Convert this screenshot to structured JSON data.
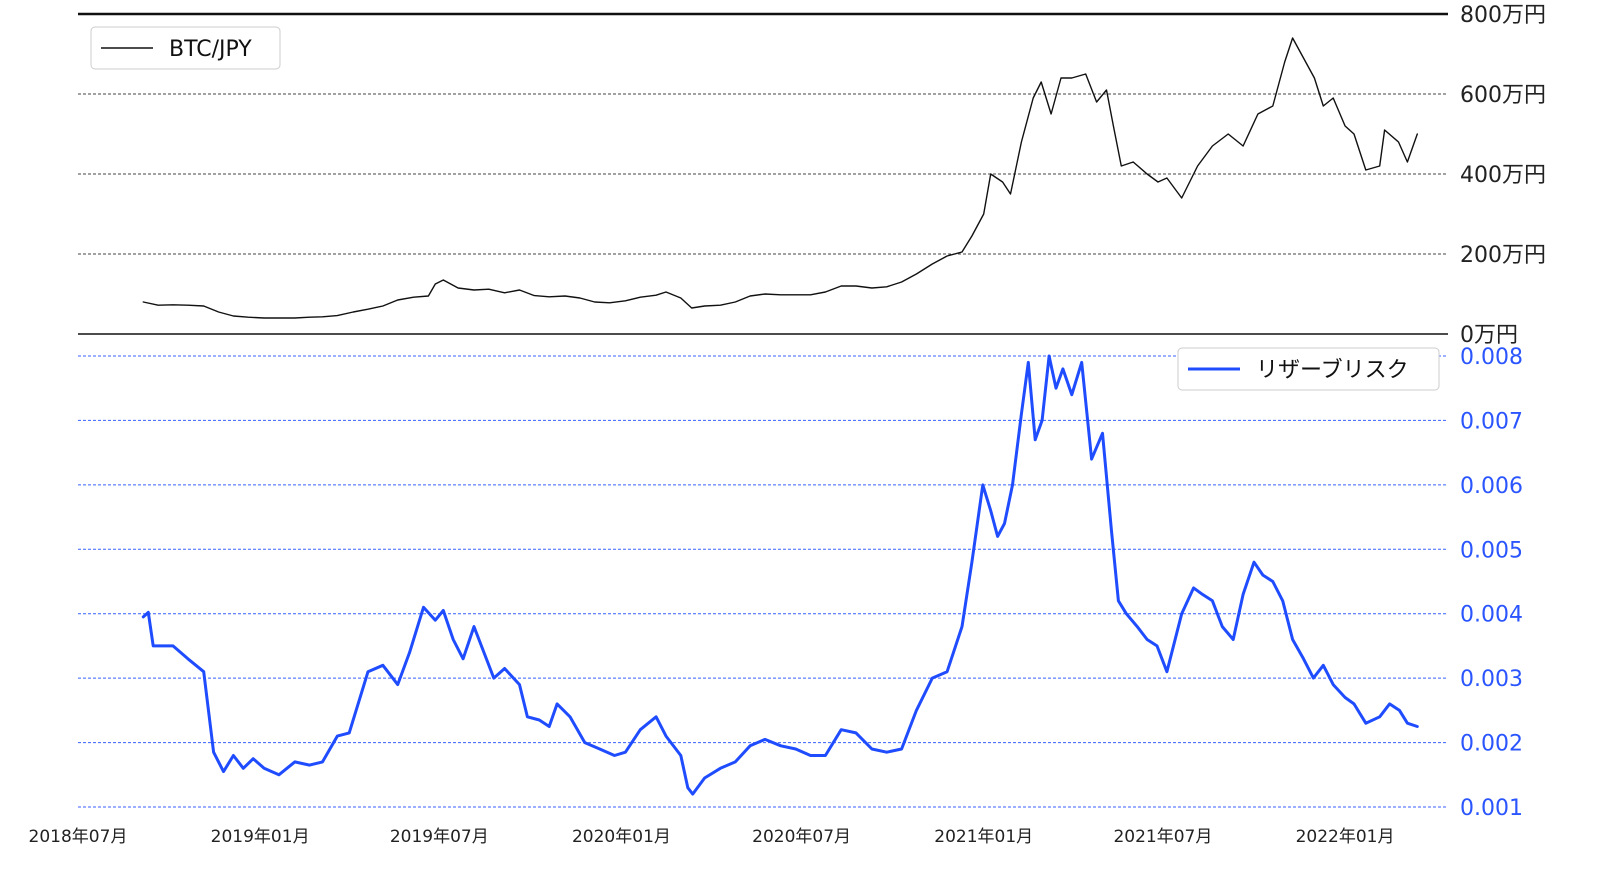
{
  "chart_data": [
    {
      "type": "line",
      "title": "",
      "ylim": [
        0,
        800
      ],
      "yticks": [
        0,
        200,
        400,
        600,
        800
      ],
      "ytick_labels": [
        "0万円",
        "200万円",
        "400万円",
        "600万円",
        "800万円"
      ],
      "grid": true,
      "legend_position": "top-left",
      "series": [
        {
          "name": "BTC/JPY",
          "color": "#111111",
          "x": [
            "2018-09-05",
            "2018-09-20",
            "2018-10-05",
            "2018-10-20",
            "2018-11-05",
            "2018-11-20",
            "2018-12-05",
            "2018-12-20",
            "2019-01-05",
            "2019-01-20",
            "2019-02-05",
            "2019-02-20",
            "2019-03-05",
            "2019-03-20",
            "2019-04-05",
            "2019-04-20",
            "2019-05-05",
            "2019-05-20",
            "2019-06-05",
            "2019-06-20",
            "2019-06-27",
            "2019-07-05",
            "2019-07-20",
            "2019-08-05",
            "2019-08-20",
            "2019-09-05",
            "2019-09-20",
            "2019-10-05",
            "2019-10-20",
            "2019-11-05",
            "2019-11-20",
            "2019-12-05",
            "2019-12-20",
            "2020-01-05",
            "2020-01-20",
            "2020-02-05",
            "2020-02-15",
            "2020-03-01",
            "2020-03-12",
            "2020-03-25",
            "2020-04-10",
            "2020-04-25",
            "2020-05-10",
            "2020-05-25",
            "2020-06-10",
            "2020-06-25",
            "2020-07-10",
            "2020-07-25",
            "2020-08-10",
            "2020-08-25",
            "2020-09-10",
            "2020-09-25",
            "2020-10-10",
            "2020-10-25",
            "2020-11-10",
            "2020-11-25",
            "2020-12-10",
            "2020-12-20",
            "2021-01-01",
            "2021-01-08",
            "2021-01-20",
            "2021-01-28",
            "2021-02-08",
            "2021-02-20",
            "2021-02-28",
            "2021-03-10",
            "2021-03-20",
            "2021-03-31",
            "2021-04-14",
            "2021-04-25",
            "2021-05-05",
            "2021-05-12",
            "2021-05-20",
            "2021-06-01",
            "2021-06-15",
            "2021-06-26",
            "2021-07-05",
            "2021-07-20",
            "2021-08-05",
            "2021-08-20",
            "2021-09-05",
            "2021-09-20",
            "2021-10-05",
            "2021-10-20",
            "2021-11-01",
            "2021-11-09",
            "2021-11-20",
            "2021-12-01",
            "2021-12-10",
            "2021-12-20",
            "2022-01-01",
            "2022-01-10",
            "2022-01-22",
            "2022-02-05",
            "2022-02-10",
            "2022-02-24",
            "2022-03-05",
            "2022-03-15"
          ],
          "values": [
            80,
            72,
            73,
            72,
            70,
            55,
            45,
            42,
            40,
            40,
            40,
            42,
            43,
            46,
            55,
            62,
            70,
            85,
            92,
            95,
            125,
            135,
            115,
            110,
            112,
            103,
            110,
            96,
            93,
            95,
            90,
            80,
            78,
            83,
            92,
            97,
            105,
            90,
            65,
            70,
            72,
            80,
            95,
            100,
            98,
            98,
            98,
            105,
            120,
            120,
            115,
            118,
            130,
            150,
            175,
            195,
            205,
            245,
            300,
            400,
            380,
            350,
            480,
            590,
            630,
            550,
            640,
            640,
            650,
            580,
            610,
            520,
            420,
            430,
            400,
            380,
            390,
            340,
            420,
            470,
            500,
            470,
            550,
            570,
            680,
            740,
            690,
            640,
            570,
            590,
            520,
            500,
            410,
            420,
            510,
            480,
            430,
            500
          ]
        }
      ]
    },
    {
      "type": "line",
      "title": "",
      "ylim": [
        0.001,
        0.008
      ],
      "yticks": [
        0.001,
        0.002,
        0.003,
        0.004,
        0.005,
        0.006,
        0.007,
        0.008
      ],
      "ytick_labels": [
        "0.001",
        "0.002",
        "0.003",
        "0.004",
        "0.005",
        "0.006",
        "0.007",
        "0.008"
      ],
      "grid": true,
      "legend_position": "top-right",
      "xlim": [
        "2018-07-01",
        "2022-04-15"
      ],
      "xticks": [
        "2018-07-01",
        "2019-01-01",
        "2019-07-01",
        "2020-01-01",
        "2020-07-01",
        "2021-01-01",
        "2021-07-01",
        "2022-01-01"
      ],
      "xtick_labels": [
        "2018年07月",
        "2019年01月",
        "2019年07月",
        "2020年01月",
        "2020年07月",
        "2021年01月",
        "2021年07月",
        "2022年01月"
      ],
      "series": [
        {
          "name": "リザーブリスク",
          "color": "#1f4cff",
          "x": [
            "2018-09-05",
            "2018-09-10",
            "2018-09-15",
            "2018-10-05",
            "2018-10-20",
            "2018-11-05",
            "2018-11-15",
            "2018-11-25",
            "2018-12-05",
            "2018-12-15",
            "2018-12-25",
            "2019-01-05",
            "2019-01-20",
            "2019-02-05",
            "2019-02-20",
            "2019-03-05",
            "2019-03-20",
            "2019-04-01",
            "2019-04-20",
            "2019-05-05",
            "2019-05-20",
            "2019-06-01",
            "2019-06-15",
            "2019-06-27",
            "2019-07-05",
            "2019-07-15",
            "2019-07-25",
            "2019-08-05",
            "2019-08-15",
            "2019-08-25",
            "2019-09-05",
            "2019-09-20",
            "2019-09-28",
            "2019-10-10",
            "2019-10-20",
            "2019-10-28",
            "2019-11-10",
            "2019-11-25",
            "2019-12-10",
            "2019-12-25",
            "2020-01-05",
            "2020-01-20",
            "2020-02-05",
            "2020-02-15",
            "2020-03-01",
            "2020-03-08",
            "2020-03-13",
            "2020-03-25",
            "2020-04-10",
            "2020-04-25",
            "2020-05-10",
            "2020-05-25",
            "2020-06-10",
            "2020-06-25",
            "2020-07-10",
            "2020-07-25",
            "2020-08-10",
            "2020-08-25",
            "2020-09-10",
            "2020-09-25",
            "2020-10-10",
            "2020-10-25",
            "2020-11-10",
            "2020-11-25",
            "2020-12-10",
            "2020-12-20",
            "2020-12-31",
            "2021-01-08",
            "2021-01-15",
            "2021-01-22",
            "2021-01-30",
            "2021-02-08",
            "2021-02-15",
            "2021-02-22",
            "2021-03-01",
            "2021-03-08",
            "2021-03-15",
            "2021-03-22",
            "2021-03-31",
            "2021-04-10",
            "2021-04-20",
            "2021-05-01",
            "2021-05-10",
            "2021-05-17",
            "2021-05-25",
            "2021-06-05",
            "2021-06-15",
            "2021-06-25",
            "2021-07-05",
            "2021-07-20",
            "2021-08-01",
            "2021-08-10",
            "2021-08-20",
            "2021-08-30",
            "2021-09-10",
            "2021-09-20",
            "2021-10-01",
            "2021-10-10",
            "2021-10-20",
            "2021-10-30",
            "2021-11-09",
            "2021-11-20",
            "2021-11-30",
            "2021-12-10",
            "2021-12-20",
            "2022-01-01",
            "2022-01-10",
            "2022-01-22",
            "2022-02-05",
            "2022-02-15",
            "2022-02-25",
            "2022-03-05",
            "2022-03-15"
          ],
          "values": [
            0.00395,
            0.00402,
            0.0035,
            0.0035,
            0.0033,
            0.0031,
            0.00185,
            0.00155,
            0.0018,
            0.0016,
            0.00175,
            0.0016,
            0.0015,
            0.0017,
            0.00165,
            0.0017,
            0.0021,
            0.00215,
            0.0031,
            0.0032,
            0.0029,
            0.0034,
            0.0041,
            0.0039,
            0.00405,
            0.0036,
            0.0033,
            0.0038,
            0.0034,
            0.003,
            0.00315,
            0.0029,
            0.0024,
            0.00235,
            0.00225,
            0.0026,
            0.0024,
            0.002,
            0.0019,
            0.0018,
            0.00185,
            0.0022,
            0.0024,
            0.0021,
            0.0018,
            0.0013,
            0.0012,
            0.00145,
            0.0016,
            0.0017,
            0.00195,
            0.00205,
            0.00195,
            0.0019,
            0.0018,
            0.0018,
            0.0022,
            0.00215,
            0.0019,
            0.00185,
            0.0019,
            0.0025,
            0.003,
            0.0031,
            0.0038,
            0.0048,
            0.006,
            0.0056,
            0.0052,
            0.0054,
            0.006,
            0.0071,
            0.0079,
            0.0067,
            0.007,
            0.008,
            0.0075,
            0.0078,
            0.0074,
            0.0079,
            0.0064,
            0.0068,
            0.0053,
            0.0042,
            0.004,
            0.0038,
            0.0036,
            0.0035,
            0.0031,
            0.004,
            0.0044,
            0.0043,
            0.0042,
            0.0038,
            0.0036,
            0.0043,
            0.0048,
            0.0046,
            0.0045,
            0.0042,
            0.0036,
            0.0033,
            0.003,
            0.0032,
            0.0029,
            0.0027,
            0.0026,
            0.0023,
            0.0024,
            0.0026,
            0.0025,
            0.0023,
            0.00225
          ]
        }
      ]
    }
  ]
}
